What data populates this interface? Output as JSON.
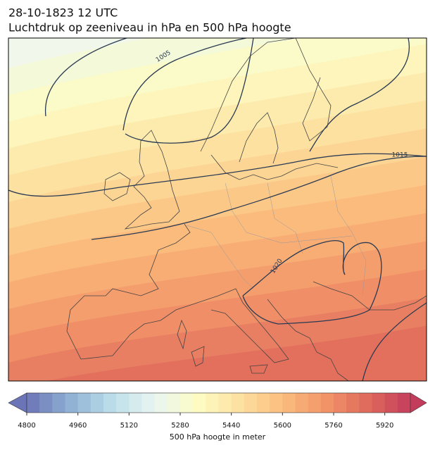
{
  "header": {
    "date": "28-10-1823 12 UTC",
    "title": "Luchtdruk op zeeniveau in hPa en 500 hPa hoogte"
  },
  "contour_labels": [
    "1005",
    "1015",
    "1020"
  ],
  "colorbar": {
    "label": "500 hPa hoogte in meter",
    "range": [
      4800,
      6000
    ],
    "levels": 30,
    "ticks": [
      4800,
      4960,
      5120,
      5280,
      5440,
      5600,
      5760,
      5920
    ],
    "colormap": [
      "#6a74b6",
      "#8fb0d3",
      "#bcdeea",
      "#e9f5f2",
      "#fdfcc4",
      "#fde0a0",
      "#fbbd7e",
      "#f39568",
      "#de6a5c",
      "#c43c5c"
    ]
  }
}
